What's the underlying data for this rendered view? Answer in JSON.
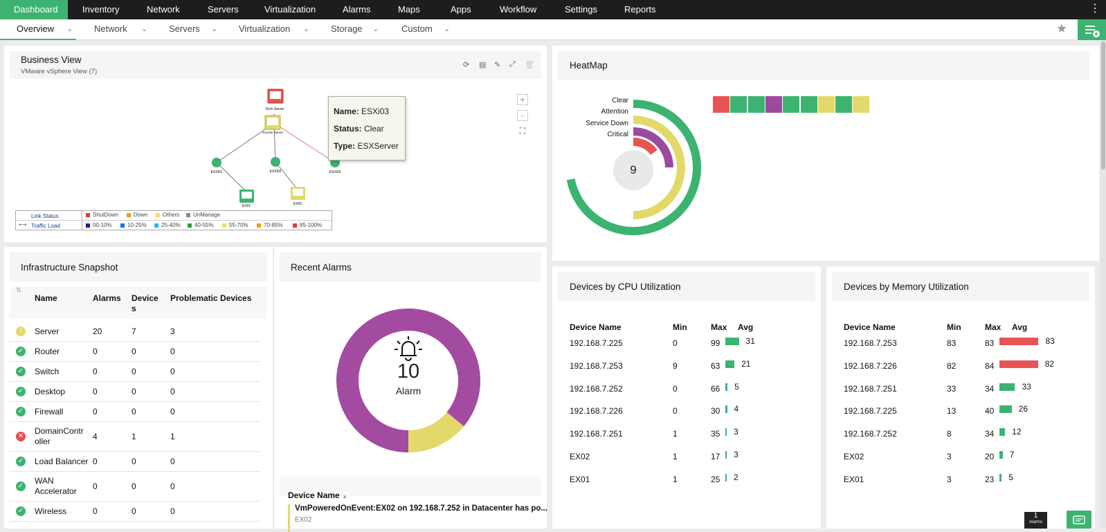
{
  "nav": {
    "tabs": [
      "Dashboard",
      "Inventory",
      "Network",
      "Servers",
      "Virtualization",
      "Alarms",
      "Maps",
      "Apps",
      "Workflow",
      "Settings",
      "Reports"
    ],
    "active": "Dashboard"
  },
  "subnav": {
    "tabs": [
      "Overview",
      "Network",
      "Servers",
      "Virtualization",
      "Storage",
      "Custom"
    ],
    "active": "Overview"
  },
  "business_view": {
    "title": "Business View",
    "subtitle": "VMware vSphere View (7)",
    "nodes": {
      "top": "Orch Server",
      "vcenter": "vCenter Server",
      "esx1": "ESXi01",
      "esx2": "ESXi02",
      "esx3": "ESXi03",
      "ex1": "EX01",
      "ex2": "EX02"
    },
    "tooltip": {
      "name_label": "Name:",
      "name": "ESXi03",
      "status_label": "Status:",
      "status": "Clear",
      "type_label": "Type:",
      "type": "ESXServer"
    },
    "zoom_in": "+",
    "zoom_out": "-",
    "legend": {
      "link_status": "Link Status",
      "traffic_load": "Traffic Load",
      "status": [
        {
          "label": "ShutDown",
          "color": "#e53935"
        },
        {
          "label": "Down",
          "color": "#f39c12"
        },
        {
          "label": "Others",
          "color": "#f1e05a"
        },
        {
          "label": "UnManage",
          "color": "#888888"
        }
      ],
      "load": [
        {
          "label": "00-10%",
          "color": "#1a237e"
        },
        {
          "label": "10-25%",
          "color": "#1e6fd9"
        },
        {
          "label": "25-40%",
          "color": "#29b6f6"
        },
        {
          "label": "40-55%",
          "color": "#2e9e3a"
        },
        {
          "label": "55-70%",
          "color": "#f1e05a"
        },
        {
          "label": "70-85%",
          "color": "#f39c12"
        },
        {
          "label": "85-100%",
          "color": "#e53935"
        }
      ]
    }
  },
  "heatmap": {
    "title": "HeatMap",
    "center_value": "9",
    "legend": [
      "Clear",
      "Attention",
      "Service Down",
      "Critical"
    ],
    "ring_fractions": {
      "clear": 0.72,
      "attention": 0.5,
      "service_down": 0.25,
      "critical": 0.15
    },
    "cells": [
      "#e85454",
      "#3cb371",
      "#3cb371",
      "#9b4a9e",
      "#3cb371",
      "#3cb371",
      "#e3d96a",
      "#3cb371",
      "#e3d96a"
    ],
    "colors": {
      "clear": "#3cb371",
      "attention": "#e3d96a",
      "service_down": "#9b4a9e",
      "critical": "#e85454"
    }
  },
  "infra": {
    "title": "Infrastructure Snapshot",
    "headers": {
      "name": "Name",
      "alarms": "Alarms",
      "devices": "Device\ns",
      "problematic": "Problematic Devices"
    },
    "rows": [
      {
        "status": "warning",
        "name": "Server",
        "alarms": "20",
        "devices": "7",
        "problematic": "3"
      },
      {
        "status": "ok",
        "name": "Router",
        "alarms": "0",
        "devices": "0",
        "problematic": "0"
      },
      {
        "status": "ok",
        "name": "Switch",
        "alarms": "0",
        "devices": "0",
        "problematic": "0"
      },
      {
        "status": "ok",
        "name": "Desktop",
        "alarms": "0",
        "devices": "0",
        "problematic": "0"
      },
      {
        "status": "ok",
        "name": "Firewall",
        "alarms": "0",
        "devices": "0",
        "problematic": "0"
      },
      {
        "status": "critical",
        "name": "DomainContr\noller",
        "alarms": "4",
        "devices": "1",
        "problematic": "1"
      },
      {
        "status": "ok",
        "name": "Load Balancer",
        "alarms": "0",
        "devices": "0",
        "problematic": "0"
      },
      {
        "status": "ok",
        "name": "WAN\nAccelerator",
        "alarms": "0",
        "devices": "0",
        "problematic": "0"
      },
      {
        "status": "ok",
        "name": "Wireless",
        "alarms": "0",
        "devices": "0",
        "problematic": "0"
      }
    ]
  },
  "alarms": {
    "title": "Recent Alarms",
    "count": "10",
    "label": "Alarm",
    "donut": [
      {
        "value": 0.86,
        "color": "#a24ba0"
      },
      {
        "value": 0.14,
        "color": "#e3d96a"
      }
    ],
    "col_header": "Device Name",
    "first_item": "VmPoweredOnEvent:EX02 on 192.168.7.252 in Datacenter has po...",
    "first_item_sub": "EX02"
  },
  "cpu": {
    "title": "Devices by CPU Utilization",
    "headers": {
      "name": "Device Name",
      "min": "Min",
      "max": "Max",
      "avg": "Avg"
    },
    "rows": [
      {
        "name": "192.168.7.225",
        "min": "0",
        "max": "99",
        "avg": 31
      },
      {
        "name": "192.168.7.253",
        "min": "9",
        "max": "63",
        "avg": 21
      },
      {
        "name": "192.168.7.252",
        "min": "0",
        "max": "66",
        "avg": 5
      },
      {
        "name": "192.168.7.226",
        "min": "0",
        "max": "30",
        "avg": 4
      },
      {
        "name": "192.168.7.251",
        "min": "1",
        "max": "35",
        "avg": 3
      },
      {
        "name": "EX02",
        "min": "1",
        "max": "17",
        "avg": 3
      },
      {
        "name": "EX01",
        "min": "1",
        "max": "25",
        "avg": 2
      }
    ]
  },
  "mem": {
    "title": "Devices by Memory Utilization",
    "headers": {
      "name": "Device Name",
      "min": "Min",
      "max": "Max",
      "avg": "Avg"
    },
    "rows": [
      {
        "name": "192.168.7.253",
        "min": "83",
        "max": "83",
        "avg": 83
      },
      {
        "name": "192.168.7.226",
        "min": "82",
        "max": "84",
        "avg": 82
      },
      {
        "name": "192.168.7.251",
        "min": "33",
        "max": "34",
        "avg": 33
      },
      {
        "name": "192.168.7.225",
        "min": "13",
        "max": "40",
        "avg": 26
      },
      {
        "name": "192.168.7.252",
        "min": "8",
        "max": "34",
        "avg": 12
      },
      {
        "name": "EX02",
        "min": "3",
        "max": "20",
        "avg": 7
      },
      {
        "name": "EX01",
        "min": "3",
        "max": "23",
        "avg": 5
      }
    ]
  },
  "footer": {
    "alarm_count": "1",
    "alarm_label": "Alarms"
  },
  "colors": {
    "accent": "#3cb371",
    "bar_green": "#3cb371",
    "bar_red": "#e85454"
  }
}
